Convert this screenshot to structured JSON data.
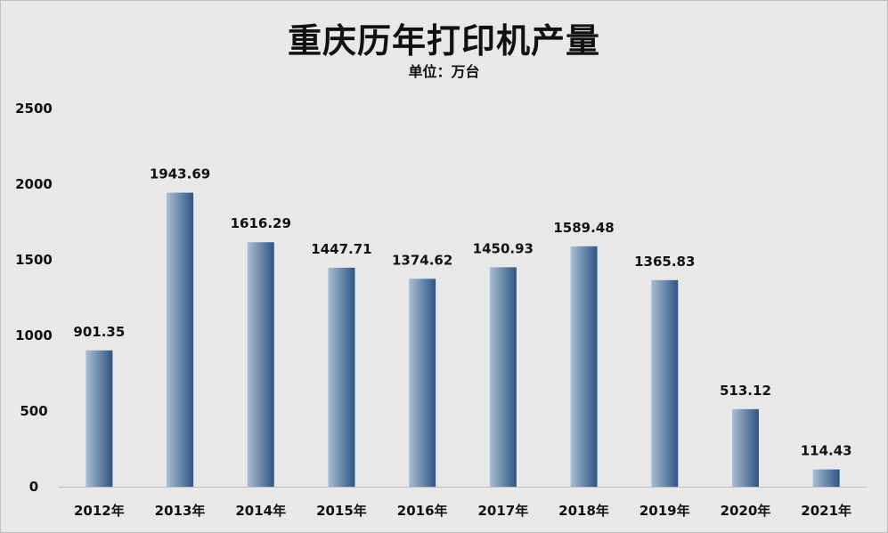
{
  "chart_data": {
    "type": "bar",
    "title": "重庆历年打印机产量",
    "subtitle": "单位：万台",
    "categories": [
      "2012年",
      "2013年",
      "2014年",
      "2015年",
      "2016年",
      "2017年",
      "2018年",
      "2019年",
      "2020年",
      "2021年"
    ],
    "values": [
      901.35,
      1943.69,
      1616.29,
      1447.71,
      1374.62,
      1450.93,
      1589.48,
      1365.83,
      513.12,
      114.43
    ],
    "value_labels": [
      "901.35",
      "1943.69",
      "1616.29",
      "1447.71",
      "1374.62",
      "1450.93",
      "1589.48",
      "1365.83",
      "513.12",
      "114.43"
    ],
    "ylim": [
      0,
      2500
    ],
    "yticks": [
      "0",
      "500",
      "1000",
      "1500",
      "2000",
      "2500"
    ],
    "grid": false,
    "colors": {
      "background": "#e8e8e8",
      "bar_light": "#a9bed3",
      "bar_dark": "#2e5583",
      "axis": "#bfbfbf"
    }
  }
}
